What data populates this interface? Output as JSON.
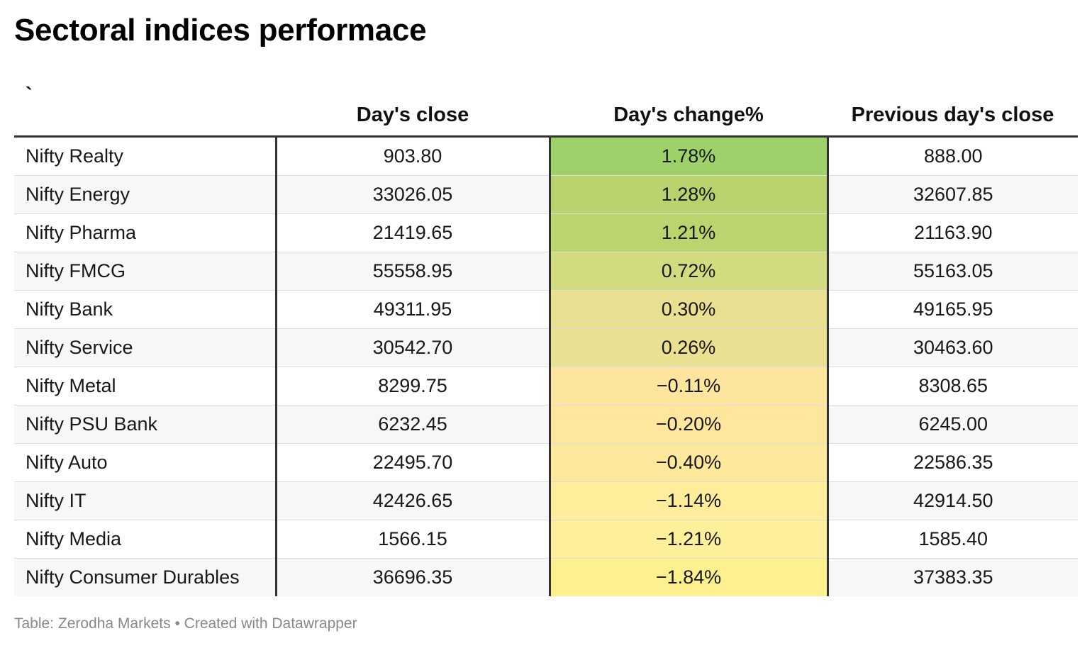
{
  "title": "Sectoral indices performace",
  "footer": {
    "source": "Table: Zerodha Markets",
    "separator": "•",
    "credit": "Created with Datawrapper"
  },
  "chart_data": {
    "type": "table",
    "title": "Sectoral indices performace",
    "columns": [
      "`",
      "Day's close",
      "Day's change%",
      "Previous day's close"
    ],
    "rows": [
      {
        "name": "Nifty Realty",
        "close": "903.80",
        "change": "1.78%",
        "change_value": 1.78,
        "prev": "888.00",
        "color": "#9fd16a"
      },
      {
        "name": "Nifty Energy",
        "close": "33026.05",
        "change": "1.28%",
        "change_value": 1.28,
        "prev": "32607.85",
        "color": "#b8d36d"
      },
      {
        "name": "Nifty Pharma",
        "close": "21419.65",
        "change": "1.21%",
        "change_value": 1.21,
        "prev": "21163.90",
        "color": "#bad46e"
      },
      {
        "name": "Nifty FMCG",
        "close": "55558.95",
        "change": "0.72%",
        "change_value": 0.72,
        "prev": "55163.05",
        "color": "#d3db80"
      },
      {
        "name": "Nifty Bank",
        "close": "49311.95",
        "change": "0.30%",
        "change_value": 0.3,
        "prev": "49165.95",
        "color": "#e8df90"
      },
      {
        "name": "Nifty Service",
        "close": "30542.70",
        "change": "0.26%",
        "change_value": 0.26,
        "prev": "30463.60",
        "color": "#eae091"
      },
      {
        "name": "Nifty Metal",
        "close": "8299.75",
        "change": "−0.11%",
        "change_value": -0.11,
        "prev": "8308.65",
        "color": "#fde59e"
      },
      {
        "name": "Nifty PSU Bank",
        "close": "6232.45",
        "change": "−0.20%",
        "change_value": -0.2,
        "prev": "6245.00",
        "color": "#fee69d"
      },
      {
        "name": "Nifty Auto",
        "close": "22495.70",
        "change": "−0.40%",
        "change_value": -0.4,
        "prev": "22586.35",
        "color": "#fee89c"
      },
      {
        "name": "Nifty IT",
        "close": "42426.65",
        "change": "−1.14%",
        "change_value": -1.14,
        "prev": "42914.50",
        "color": "#feee9c"
      },
      {
        "name": "Nifty Media",
        "close": "1566.15",
        "change": "−1.21%",
        "change_value": -1.21,
        "prev": "1585.40",
        "color": "#fef09b"
      },
      {
        "name": "Nifty Consumer Durables",
        "close": "36696.35",
        "change": "−1.84%",
        "change_value": -1.84,
        "prev": "37383.35",
        "color": "#fdf08f"
      }
    ]
  }
}
